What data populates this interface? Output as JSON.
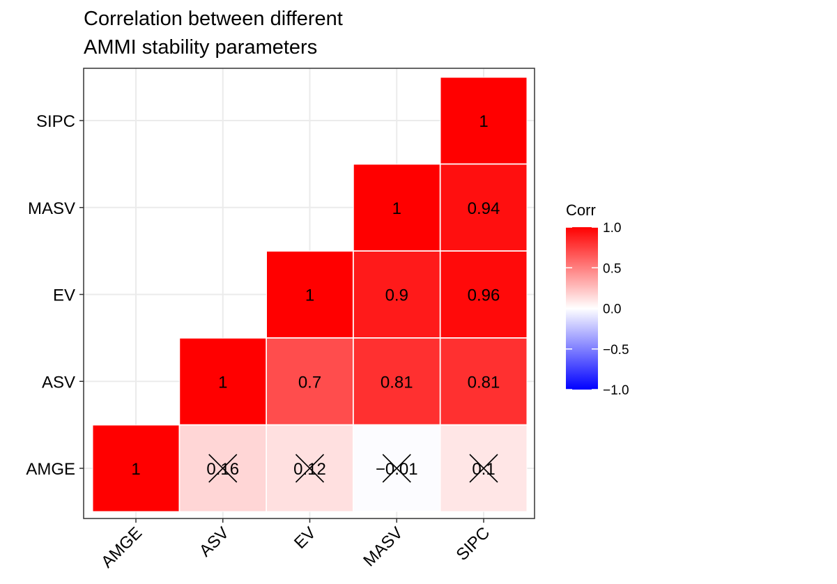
{
  "chart_data": {
    "type": "heatmap",
    "title_lines": [
      "Correlation between different",
      "AMMI stability parameters"
    ],
    "variables": [
      "AMGE",
      "ASV",
      "EV",
      "MASV",
      "SIPC"
    ],
    "cells": [
      {
        "x": "AMGE",
        "y": "AMGE",
        "value": 1,
        "label": "1",
        "insignificant": false
      },
      {
        "x": "ASV",
        "y": "AMGE",
        "value": 0.16,
        "label": "0.16",
        "insignificant": true
      },
      {
        "x": "EV",
        "y": "AMGE",
        "value": 0.12,
        "label": "0.12",
        "insignificant": true
      },
      {
        "x": "MASV",
        "y": "AMGE",
        "value": -0.01,
        "label": "−0.01",
        "insignificant": true
      },
      {
        "x": "SIPC",
        "y": "AMGE",
        "value": 0.1,
        "label": "0.1",
        "insignificant": true
      },
      {
        "x": "ASV",
        "y": "ASV",
        "value": 1,
        "label": "1",
        "insignificant": false
      },
      {
        "x": "EV",
        "y": "ASV",
        "value": 0.7,
        "label": "0.7",
        "insignificant": false
      },
      {
        "x": "MASV",
        "y": "ASV",
        "value": 0.81,
        "label": "0.81",
        "insignificant": false
      },
      {
        "x": "SIPC",
        "y": "ASV",
        "value": 0.81,
        "label": "0.81",
        "insignificant": false
      },
      {
        "x": "EV",
        "y": "EV",
        "value": 1,
        "label": "1",
        "insignificant": false
      },
      {
        "x": "MASV",
        "y": "EV",
        "value": 0.9,
        "label": "0.9",
        "insignificant": false
      },
      {
        "x": "SIPC",
        "y": "EV",
        "value": 0.96,
        "label": "0.96",
        "insignificant": false
      },
      {
        "x": "MASV",
        "y": "MASV",
        "value": 1,
        "label": "1",
        "insignificant": false
      },
      {
        "x": "SIPC",
        "y": "MASV",
        "value": 0.94,
        "label": "0.94",
        "insignificant": false
      },
      {
        "x": "SIPC",
        "y": "SIPC",
        "value": 1,
        "label": "1",
        "insignificant": false
      }
    ],
    "legend": {
      "title": "Corr",
      "ticks": [
        {
          "value": 1.0,
          "label": "1.0"
        },
        {
          "value": 0.5,
          "label": "0.5"
        },
        {
          "value": 0.0,
          "label": "0.0"
        },
        {
          "value": -0.5,
          "label": "−0.5"
        },
        {
          "value": -1.0,
          "label": "−1.0"
        }
      ],
      "range": [
        -1,
        1
      ],
      "placement": "right"
    },
    "colors": {
      "low": "#0000ff",
      "mid": "#ffffff",
      "high": "#ff0000",
      "panel_border": "#333333",
      "grid": "#ebebeb"
    },
    "grid": true
  }
}
